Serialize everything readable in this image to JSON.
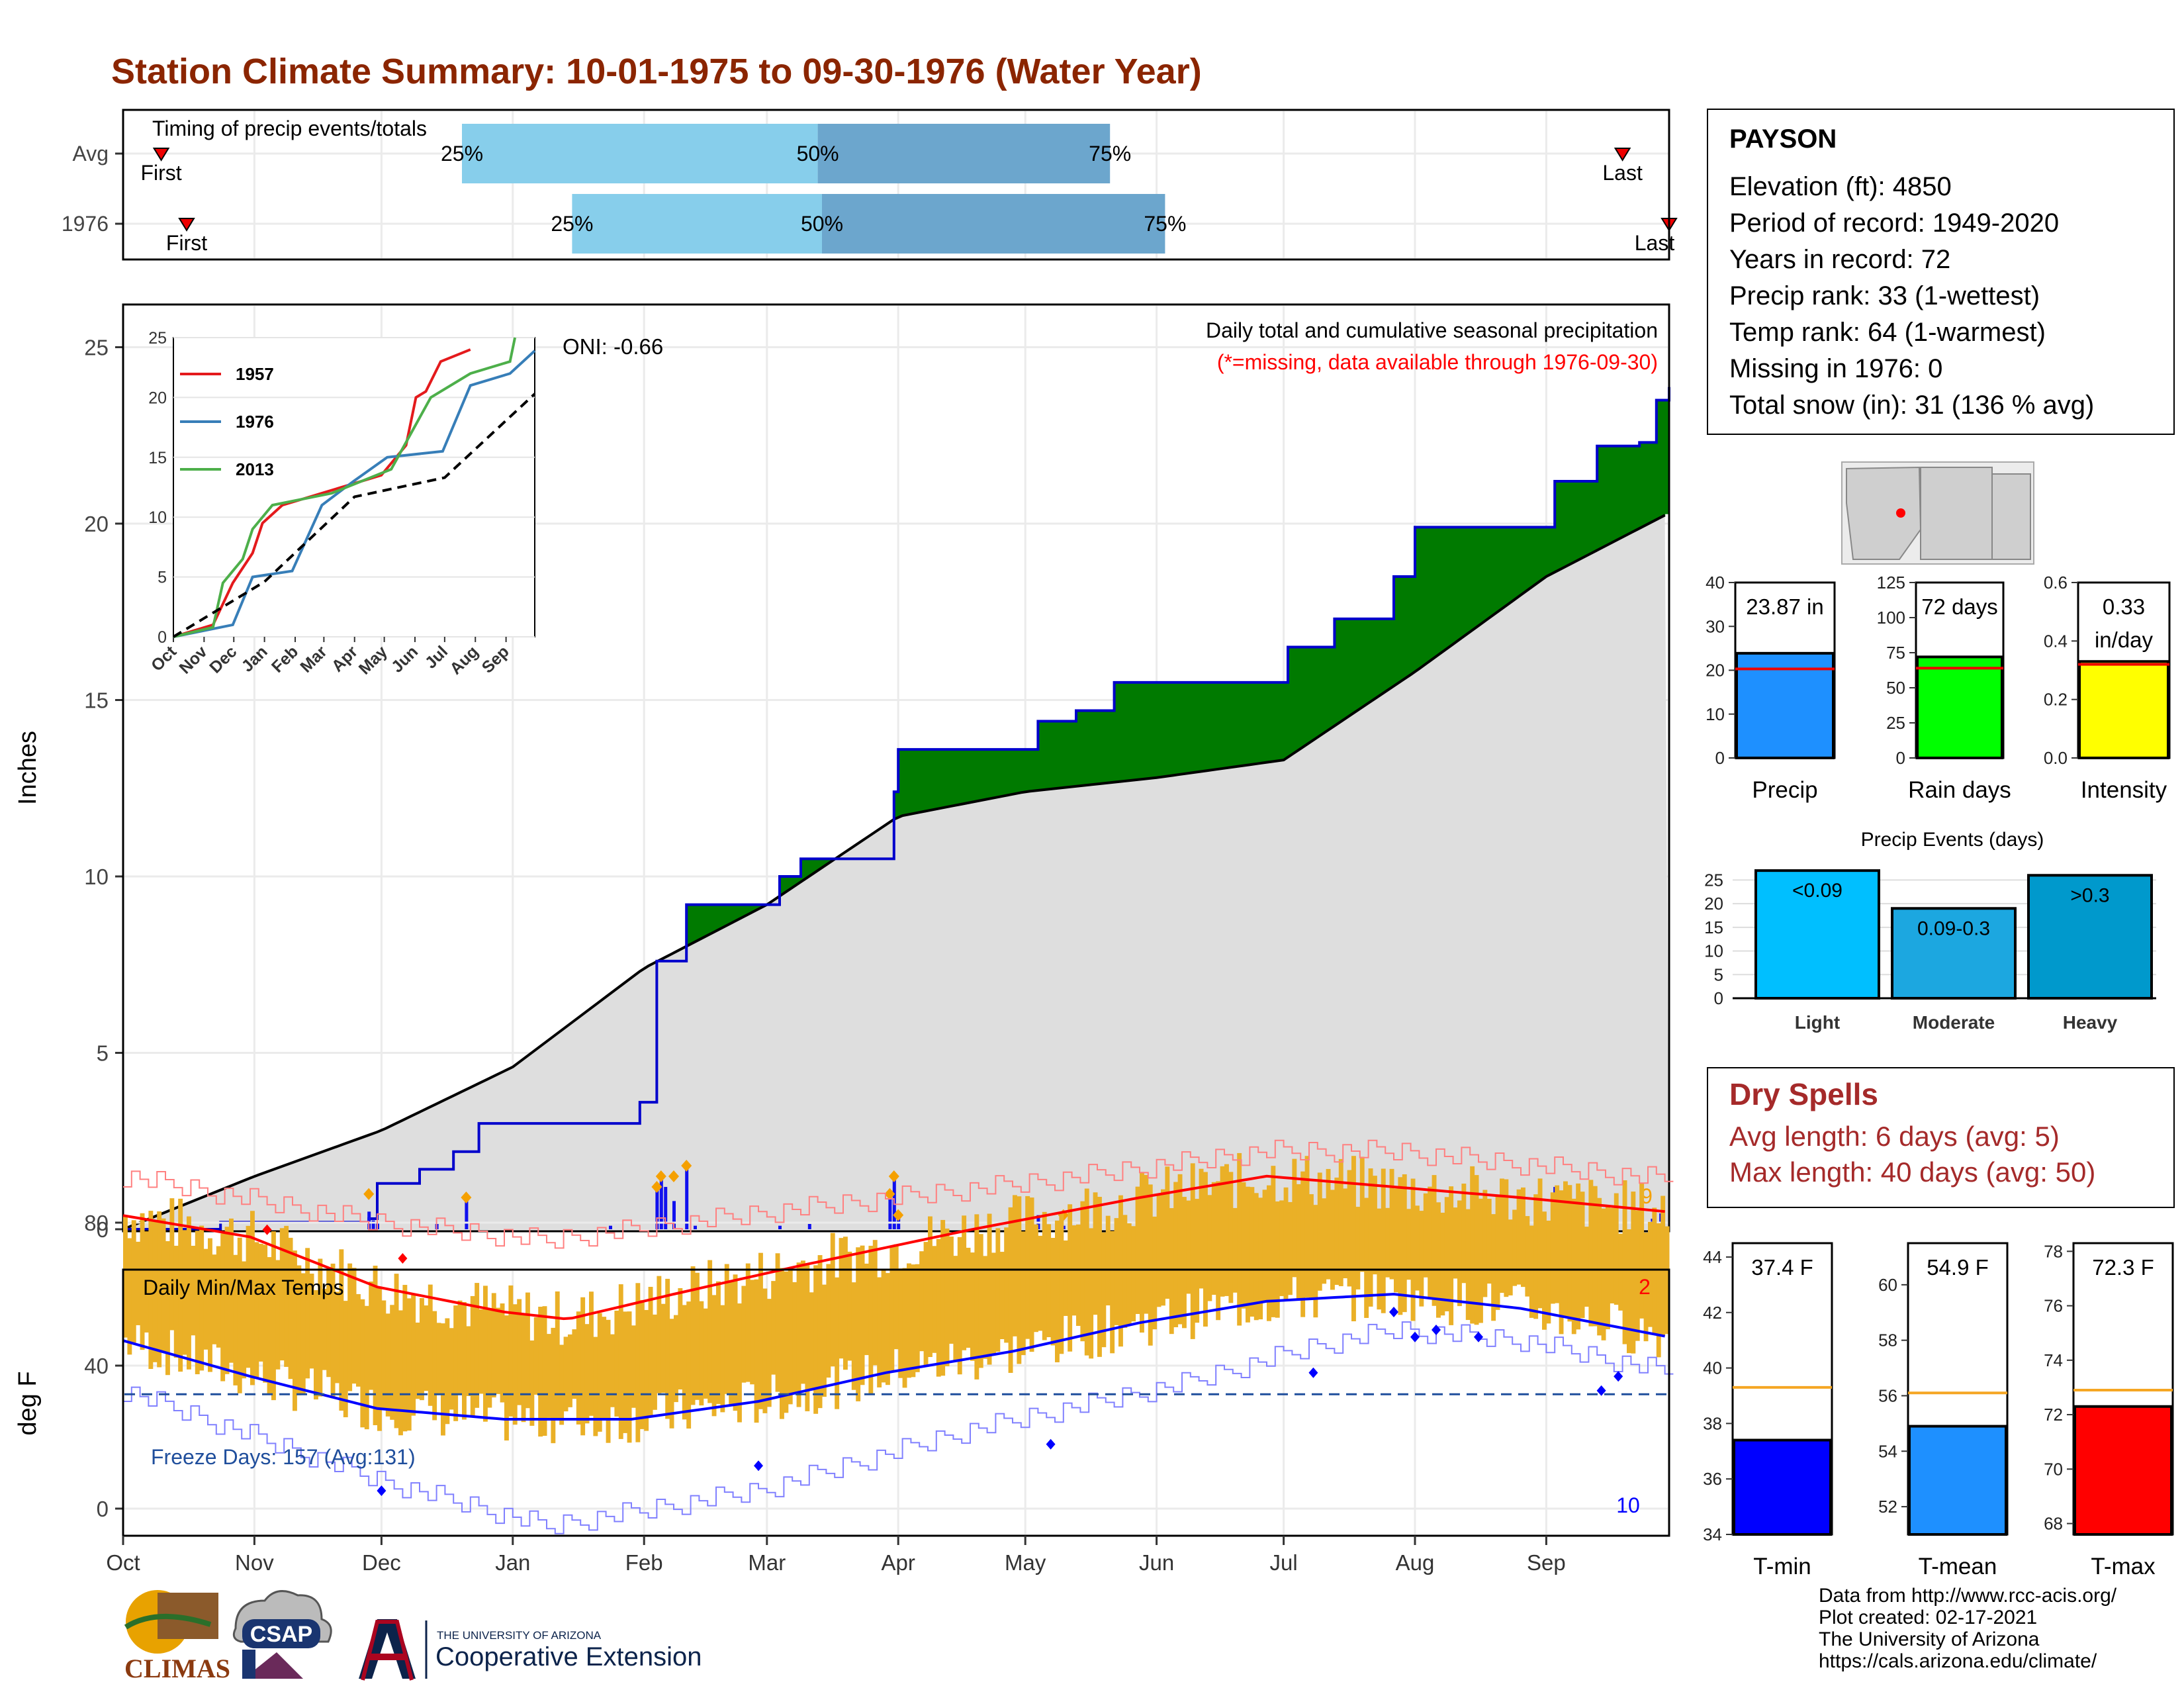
{
  "title": "Station Climate Summary: 10-01-1975 to 09-30-1976 (Water Year)",
  "colors": {
    "title": "#8b2500",
    "precip_line": "#0000cc",
    "surplus": "#007a00",
    "deficit": "#8b5a00",
    "climo_fill": "#dedede",
    "tmin": "#0000ff",
    "tmax": "#ff0000",
    "tband": "#eab027",
    "freeze": "#1f4e9c",
    "dry": "#a52a2a"
  },
  "months": [
    "Oct",
    "Nov",
    "Dec",
    "Jan",
    "Feb",
    "Mar",
    "Apr",
    "May",
    "Jun",
    "Jul",
    "Aug",
    "Sep"
  ],
  "timing": {
    "title": "Timing of precip events/totals",
    "rows": [
      {
        "label": "Avg",
        "first_label": "First",
        "first_day": 9,
        "q25": 80,
        "q50": 164,
        "q75": 233,
        "last_day": 354,
        "last_label": "Last",
        "q25_label": "25%",
        "q50_label": "50%",
        "q75_label": "75%"
      },
      {
        "label": "1976",
        "first_label": "First",
        "first_day": 15,
        "q25": 106,
        "q50": 165,
        "q75": 246,
        "last_day": 365,
        "last_label": "Last",
        "q25_label": "25%",
        "q50_label": "50%",
        "q75_label": "75%"
      }
    ]
  },
  "precip_panel": {
    "ylabel": "Inches",
    "yticks": [
      0,
      5,
      10,
      15,
      20,
      25
    ],
    "subtitle": "Daily total and cumulative seasonal precipitation",
    "missing_note": "(*=missing, data available through 1976-09-30)",
    "oni": "ONI: -0.66",
    "corner_count": "9"
  },
  "inset": {
    "yticks": [
      0,
      5,
      10,
      15,
      20,
      25
    ],
    "xticks": [
      "Oct",
      "Nov",
      "Dec",
      "Jan",
      "Feb",
      "Mar",
      "Apr",
      "May",
      "Jun",
      "Jul",
      "Aug",
      "Sep"
    ],
    "legend": [
      {
        "name": "1957",
        "color": "#e41a1c"
      },
      {
        "name": "1976",
        "color": "#377eb8"
      },
      {
        "name": "2013",
        "color": "#4daf4a"
      }
    ]
  },
  "temp_panel": {
    "ylabel": "deg F",
    "title": "Daily Min/Max Temps",
    "yticks": [
      0,
      40,
      80
    ],
    "freeze_label": "Freeze Days: 157 (Avg:131)",
    "freeze_line": 32,
    "max_count": "2",
    "min_count": "10"
  },
  "station": {
    "name": "PAYSON",
    "lines": [
      "Elevation (ft): 4850",
      "Period of record: 1949-2020",
      "Years in record: 72",
      "Precip rank: 33 (1-wettest)",
      "Temp rank: 64 (1-warmest)",
      "Missing in 1976: 0",
      "Total snow (in): 31 (136 % avg)"
    ]
  },
  "dry_spells": {
    "title": "Dry Spells",
    "lines": [
      "Avg length: 6 days (avg: 5)",
      "Max length: 40 days (avg: 50)"
    ]
  },
  "credits": [
    "Data from http://www.rcc-acis.org/",
    "Plot created: 02-17-2021",
    "The University of Arizona",
    "https://cals.arizona.edu/climate/"
  ],
  "logos": {
    "climas": "CLIMAS",
    "csap": "CSAP",
    "ua_small": "THE UNIVERSITY OF ARIZONA",
    "ua_big": "Cooperative Extension"
  },
  "chart_data": [
    {
      "type": "area",
      "name": "cumulative_precip",
      "title": "Daily total and cumulative seasonal precipitation",
      "ylabel": "Inches",
      "ylim": [
        0,
        26
      ],
      "x_unit": "day of water year (Oct 1 = 0)",
      "climo_points": [
        [
          0,
          0
        ],
        [
          31,
          1.5
        ],
        [
          61,
          2.8
        ],
        [
          92,
          4.6
        ],
        [
          123,
          7.4
        ],
        [
          152,
          9.2
        ],
        [
          183,
          11.7
        ],
        [
          213,
          12.4
        ],
        [
          244,
          12.8
        ],
        [
          274,
          13.3
        ],
        [
          305,
          15.8
        ],
        [
          336,
          18.5
        ],
        [
          365,
          20.3
        ]
      ],
      "obs_points": [
        [
          0,
          0
        ],
        [
          23,
          0.2
        ],
        [
          58,
          0.3
        ],
        [
          60,
          1.3
        ],
        [
          70,
          1.7
        ],
        [
          78,
          2.2
        ],
        [
          84,
          3.0
        ],
        [
          115,
          3.0
        ],
        [
          122,
          3.6
        ],
        [
          126,
          7.6
        ],
        [
          133,
          9.2
        ],
        [
          152,
          9.2
        ],
        [
          155,
          10.0
        ],
        [
          160,
          10.5
        ],
        [
          168,
          10.5
        ],
        [
          181,
          10.5
        ],
        [
          182,
          12.4
        ],
        [
          183,
          13.6
        ],
        [
          213,
          13.6
        ],
        [
          216,
          14.4
        ],
        [
          225,
          14.7
        ],
        [
          234,
          15.5
        ],
        [
          274,
          15.5
        ],
        [
          275,
          16.5
        ],
        [
          286,
          17.3
        ],
        [
          300,
          18.5
        ],
        [
          305,
          19.9
        ],
        [
          335,
          19.9
        ],
        [
          338,
          21.2
        ],
        [
          348,
          22.2
        ],
        [
          358,
          22.3
        ],
        [
          362,
          23.5
        ],
        [
          365,
          23.87
        ]
      ],
      "daily_bars": [
        [
          58,
          0.5
        ],
        [
          59,
          0.25
        ],
        [
          60,
          0.2
        ],
        [
          74,
          0.15
        ],
        [
          81,
          0.8
        ],
        [
          115,
          0.1
        ],
        [
          126,
          1.1
        ],
        [
          127,
          1.4
        ],
        [
          128,
          1.2
        ],
        [
          130,
          0.8
        ],
        [
          133,
          1.8
        ],
        [
          135,
          0.1
        ],
        [
          155,
          0.1
        ],
        [
          162,
          0.15
        ],
        [
          181,
          1.0
        ],
        [
          182,
          1.4
        ],
        [
          183,
          0.4
        ],
        [
          216,
          0.4
        ],
        [
          222,
          0.1
        ],
        [
          275,
          0.3
        ],
        [
          283,
          0.25
        ],
        [
          288,
          0.4
        ],
        [
          291,
          0.3
        ],
        [
          297,
          0.35
        ],
        [
          326,
          0.25
        ],
        [
          338,
          1.2
        ],
        [
          343,
          0.1
        ],
        [
          348,
          0.4
        ],
        [
          361,
          0.3
        ],
        [
          363,
          0.45
        ]
      ]
    },
    {
      "type": "line",
      "name": "inset_cumulative",
      "ylim": [
        0,
        25
      ],
      "series": [
        {
          "name": "1957",
          "values": [
            [
              0,
              0
            ],
            [
              40,
              1
            ],
            [
              60,
              4.5
            ],
            [
              80,
              7
            ],
            [
              90,
              9.5
            ],
            [
              110,
              11
            ],
            [
              150,
              12
            ],
            [
              190,
              13
            ],
            [
              210,
              13.5
            ],
            [
              235,
              16
            ],
            [
              245,
              20
            ],
            [
              255,
              20.5
            ],
            [
              270,
              23
            ],
            [
              300,
              24
            ]
          ]
        },
        {
          "name": "1976",
          "values": [
            [
              0,
              0
            ],
            [
              60,
              1
            ],
            [
              70,
              3
            ],
            [
              80,
              5
            ],
            [
              120,
              5.5
            ],
            [
              150,
              11
            ],
            [
              182,
              13
            ],
            [
              216,
              15
            ],
            [
              272,
              15.5
            ],
            [
              300,
              21
            ],
            [
              340,
              22
            ],
            [
              365,
              23.9
            ]
          ]
        },
        {
          "name": "2013",
          "values": [
            [
              0,
              0
            ],
            [
              40,
              0.8
            ],
            [
              50,
              4.5
            ],
            [
              70,
              6.5
            ],
            [
              80,
              9
            ],
            [
              100,
              11
            ],
            [
              160,
              12
            ],
            [
              220,
              14
            ],
            [
              240,
              17
            ],
            [
              260,
              20
            ],
            [
              300,
              22
            ],
            [
              340,
              23
            ],
            [
              345,
              25
            ]
          ]
        },
        {
          "name": "climo",
          "values": [
            [
              0,
              0
            ],
            [
              92,
              4.6
            ],
            [
              183,
              11.7
            ],
            [
              274,
              13.3
            ],
            [
              365,
              20.3
            ]
          ]
        }
      ]
    },
    {
      "type": "area",
      "name": "temperature",
      "title": "Daily Min/Max Temps",
      "ylabel": "deg F",
      "ylim": [
        -8,
        95
      ],
      "avg_max": [
        [
          0,
          82
        ],
        [
          30,
          76
        ],
        [
          60,
          62
        ],
        [
          90,
          55
        ],
        [
          105,
          53
        ],
        [
          130,
          60
        ],
        [
          160,
          68
        ],
        [
          200,
          78
        ],
        [
          240,
          87
        ],
        [
          270,
          93
        ],
        [
          300,
          90
        ],
        [
          330,
          87
        ],
        [
          365,
          83
        ]
      ],
      "avg_min": [
        [
          0,
          47
        ],
        [
          30,
          37
        ],
        [
          60,
          28
        ],
        [
          90,
          25
        ],
        [
          120,
          25
        ],
        [
          150,
          30
        ],
        [
          180,
          38
        ],
        [
          210,
          44
        ],
        [
          240,
          52
        ],
        [
          270,
          58
        ],
        [
          300,
          60
        ],
        [
          330,
          56
        ],
        [
          365,
          48
        ]
      ],
      "rec_max": [
        [
          0,
          93
        ],
        [
          60,
          80
        ],
        [
          100,
          75
        ],
        [
          160,
          84
        ],
        [
          220,
          92
        ],
        [
          270,
          100
        ],
        [
          300,
          100
        ],
        [
          365,
          92
        ]
      ],
      "rec_min": [
        [
          0,
          33
        ],
        [
          60,
          8
        ],
        [
          100,
          -5
        ],
        [
          150,
          5
        ],
        [
          200,
          22
        ],
        [
          250,
          35
        ],
        [
          280,
          45
        ],
        [
          300,
          50
        ],
        [
          330,
          47
        ],
        [
          365,
          38
        ]
      ]
    },
    {
      "type": "bar",
      "name": "precip_total",
      "categories": [
        "Precip"
      ],
      "values": [
        23.87
      ],
      "avg": 20.3,
      "label": "23.87 in",
      "yticks": [
        0,
        10,
        20,
        30,
        40
      ],
      "ylim": [
        0,
        40
      ]
    },
    {
      "type": "bar",
      "name": "rain_days",
      "categories": [
        "Rain days"
      ],
      "values": [
        72
      ],
      "avg": 64,
      "label": "72 days",
      "yticks": [
        0,
        25,
        50,
        75,
        100,
        125
      ],
      "ylim": [
        0,
        125
      ]
    },
    {
      "type": "bar",
      "name": "intensity",
      "categories": [
        "Intensity"
      ],
      "values": [
        0.33
      ],
      "avg": 0.32,
      "label": "0.33",
      "label2": "in/day",
      "yticks": [
        "0.0",
        "0.2",
        "0.4",
        "0.6"
      ],
      "ylim": [
        0,
        0.6
      ]
    },
    {
      "type": "bar",
      "name": "precip_events",
      "title": "Precip Events (days)",
      "categories": [
        "Light",
        "Moderate",
        "Heavy"
      ],
      "values": [
        27,
        19,
        26
      ],
      "bar_labels": [
        "<0.09",
        "0.09-0.3",
        ">0.3"
      ],
      "yticks": [
        0,
        5,
        10,
        15,
        20,
        25
      ],
      "ylim": [
        0,
        28
      ]
    },
    {
      "type": "bar",
      "name": "tmin",
      "categories": [
        "T-min"
      ],
      "values": [
        37.4
      ],
      "avg": 39.3,
      "label": "37.4 F",
      "yticks": [
        34,
        36,
        38,
        40,
        42,
        44
      ],
      "ylim": [
        34,
        44.5
      ]
    },
    {
      "type": "bar",
      "name": "tmean",
      "categories": [
        "T-mean"
      ],
      "values": [
        54.9
      ],
      "avg": 56.1,
      "label": "54.9 F",
      "yticks": [
        52,
        54,
        56,
        58,
        60
      ],
      "ylim": [
        51,
        61.5
      ]
    },
    {
      "type": "bar",
      "name": "tmax",
      "categories": [
        "T-max"
      ],
      "values": [
        72.3
      ],
      "avg": 72.9,
      "label": "72.3 F",
      "yticks": [
        68,
        70,
        72,
        74,
        76,
        78
      ],
      "ylim": [
        67.6,
        78.3
      ]
    }
  ]
}
